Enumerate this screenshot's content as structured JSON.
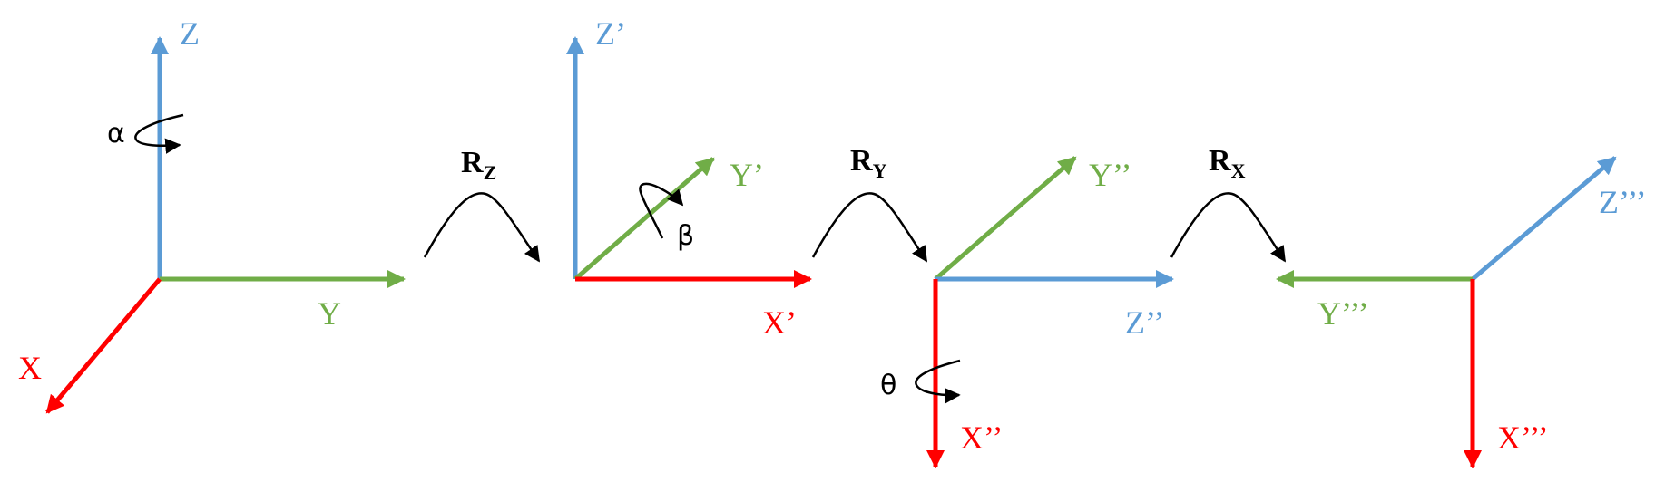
{
  "colors": {
    "x_axis": "#ff0000",
    "y_axis": "#70ad47",
    "z_axis": "#5b9bd5",
    "rotation": "#000000"
  },
  "frame1": {
    "z": "Z",
    "y": "Y",
    "x": "X",
    "angle": "α"
  },
  "op1": {
    "letter": "R",
    "sub": "Z"
  },
  "frame2": {
    "z": "Z’",
    "y": "Y’",
    "x": "X’",
    "angle": "β"
  },
  "op2": {
    "letter": "R",
    "sub": "Y"
  },
  "frame3": {
    "y": "Y’’",
    "z": "Z’’",
    "x": "X’’",
    "angle": "θ"
  },
  "op3": {
    "letter": "R",
    "sub": "X"
  },
  "frame4": {
    "z": "Z’’’",
    "y": "Y’’’",
    "x": "X’’’"
  }
}
